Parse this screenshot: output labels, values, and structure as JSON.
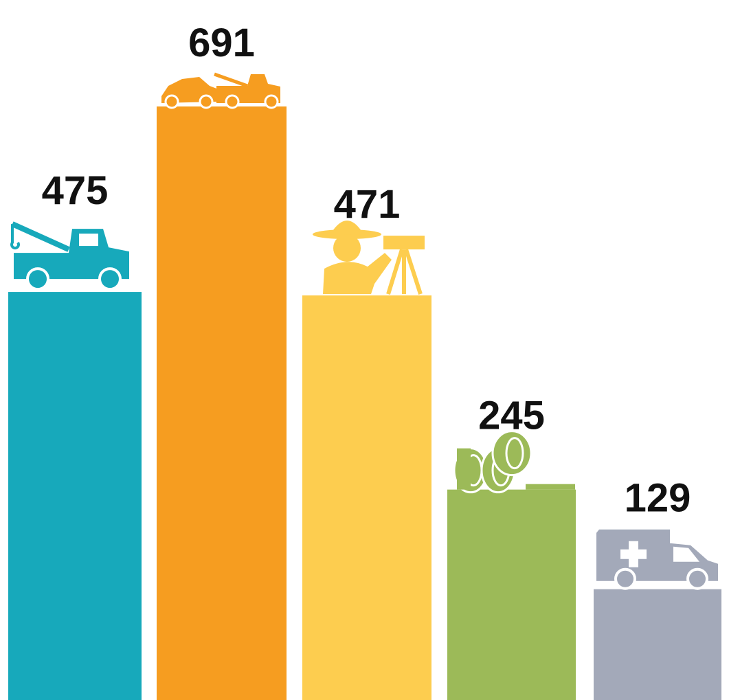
{
  "chart_data": {
    "type": "bar",
    "values": [
      475,
      691,
      471,
      245,
      129
    ],
    "colors": [
      "#17a9bb",
      "#f69d20",
      "#fdcd4f",
      "#9cba58",
      "#a3a9b9"
    ]
  }
}
